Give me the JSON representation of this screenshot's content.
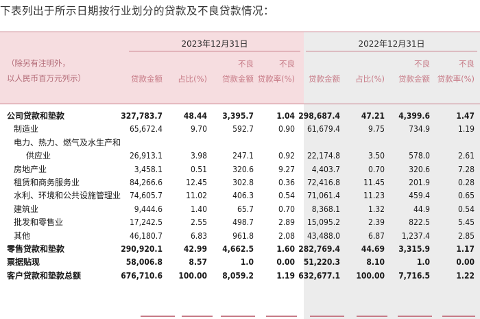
{
  "intro": "下表列出于所示日期按行业划分的贷款及不良贷款情况：",
  "periods": [
    "2023年12月31日",
    "2022年12月31日"
  ],
  "note_lines": [
    "（除另有注明外，",
    "以人民币百万元列示）"
  ],
  "col_headers": [
    {
      "l1": "",
      "l2": "贷款金额"
    },
    {
      "l1": "",
      "l2": "占比(%)"
    },
    {
      "l1": "不良",
      "l2": "贷款金额"
    },
    {
      "l1": "不良",
      "l2": "贷款率(%)"
    },
    {
      "l1": "",
      "l2": "贷款金额"
    },
    {
      "l1": "",
      "l2": "占比(%)"
    },
    {
      "l1": "不良",
      "l2": "贷款金额"
    },
    {
      "l1": "不良",
      "l2": "贷款率(%)"
    }
  ],
  "rows": [
    {
      "name": "公司贷款和垫款",
      "bold": true,
      "indent": 0,
      "values": [
        "327,783.7",
        "48.44",
        "3,395.7",
        "1.04",
        "298,687.4",
        "47.21",
        "4,399.6",
        "1.47"
      ]
    },
    {
      "name": "制造业",
      "bold": false,
      "indent": 1,
      "values": [
        "65,672.4",
        "9.70",
        "592.7",
        "0.90",
        "61,679.4",
        "9.75",
        "734.9",
        "1.19"
      ]
    },
    {
      "name": "电力、热力、燃气及水生产和",
      "bold": false,
      "indent": 1,
      "values": [
        "",
        "",
        "",
        "",
        "",
        "",
        "",
        ""
      ]
    },
    {
      "name": "供应业",
      "bold": false,
      "indent": 2,
      "values": [
        "26,913.1",
        "3.98",
        "247.1",
        "0.92",
        "22,174.8",
        "3.50",
        "578.0",
        "2.61"
      ]
    },
    {
      "name": "房地产业",
      "bold": false,
      "indent": 1,
      "values": [
        "3,458.1",
        "0.51",
        "320.6",
        "9.27",
        "4,403.7",
        "0.70",
        "320.6",
        "7.28"
      ]
    },
    {
      "name": "租赁和商务服务业",
      "bold": false,
      "indent": 1,
      "values": [
        "84,266.6",
        "12.45",
        "302.8",
        "0.36",
        "72,416.8",
        "11.45",
        "201.9",
        "0.28"
      ]
    },
    {
      "name": "水利、环境和公共设施管理业",
      "bold": false,
      "indent": 1,
      "values": [
        "74,605.7",
        "11.02",
        "406.3",
        "0.54",
        "71,061.4",
        "11.23",
        "459.4",
        "0.65"
      ]
    },
    {
      "name": "建筑业",
      "bold": false,
      "indent": 1,
      "values": [
        "9,444.6",
        "1.40",
        "65.7",
        "0.70",
        "8,368.1",
        "1.32",
        "44.9",
        "0.54"
      ]
    },
    {
      "name": "批发和零售业",
      "bold": false,
      "indent": 1,
      "values": [
        "17,242.5",
        "2.55",
        "498.7",
        "2.89",
        "15,095.2",
        "2.39",
        "822.5",
        "5.45"
      ]
    },
    {
      "name": "其他",
      "bold": false,
      "indent": 1,
      "values": [
        "46,180.7",
        "6.83",
        "961.8",
        "2.08",
        "43,488.0",
        "6.87",
        "1,237.4",
        "2.85"
      ]
    },
    {
      "name": "零售贷款和垫款",
      "bold": true,
      "indent": 0,
      "values": [
        "290,920.1",
        "42.99",
        "4,662.5",
        "1.60",
        "282,769.4",
        "44.69",
        "3,315.9",
        "1.17"
      ]
    },
    {
      "name": "票据贴现",
      "bold": true,
      "indent": 0,
      "values": [
        "58,006.8",
        "8.57",
        "1.0",
        "0.00",
        "51,220.3",
        "8.10",
        "1.0",
        "0.00"
      ]
    },
    {
      "name": "客户贷款和垫款总额",
      "bold": true,
      "indent": 0,
      "values": [
        "676,710.6",
        "100.00",
        "8,059.2",
        "1.19",
        "632,677.1",
        "100.00",
        "7,716.5",
        "1.22"
      ]
    }
  ],
  "colors": {
    "header_bg": "#f6dde0",
    "prior_year_bg": "#ececec",
    "accent": "#c77a86"
  }
}
